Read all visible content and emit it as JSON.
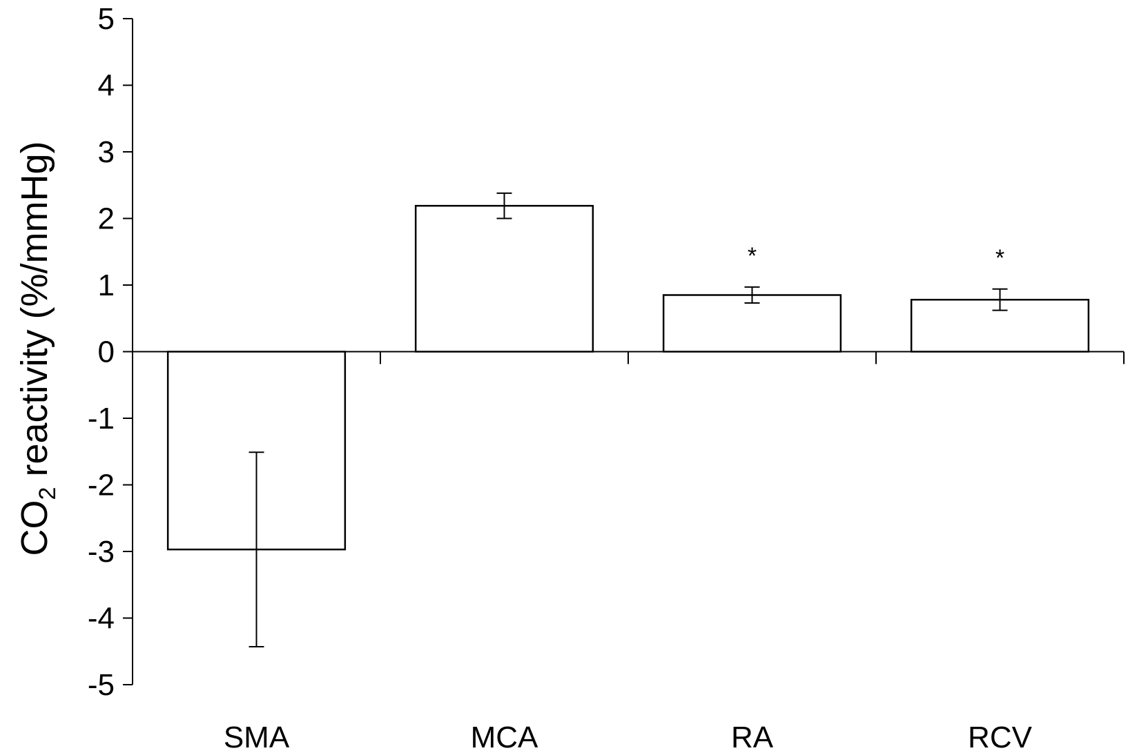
{
  "chart_data": {
    "type": "bar",
    "categories": [
      "SMA",
      "MCA",
      "RA",
      "RCV"
    ],
    "values": [
      -2.97,
      2.19,
      0.85,
      0.78
    ],
    "errors": [
      1.46,
      0.19,
      0.12,
      0.16
    ],
    "annotations": [
      "",
      "",
      "*",
      "*"
    ],
    "ylabel_main": "CO",
    "ylabel_sub": "2",
    "ylabel_rest": " reactivity (%/mmHg)",
    "xlabel": "",
    "ylim": [
      -5,
      5
    ],
    "yticks": [
      "-5",
      "-4",
      "-3",
      "-2",
      "-1",
      "0",
      "1",
      "2",
      "3",
      "4",
      "5"
    ],
    "bar_fill": "#ffffff",
    "bar_stroke": "#000000",
    "grid": false
  }
}
